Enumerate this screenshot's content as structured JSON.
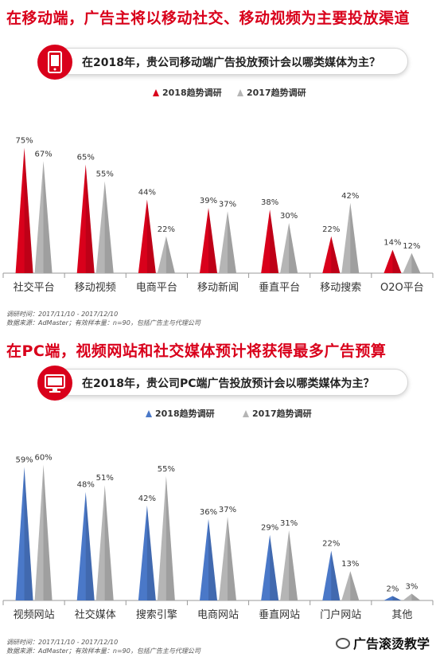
{
  "section1": {
    "headline": "在移动端，广告主将以移动社交、移动视频为主要投放渠道",
    "question": "在2018年，贵公司移动端广告投放预计会以哪类媒体为主？",
    "source_line1": "调研时间：2017/11/10 - 2017/12/10",
    "source_line2": "数据来源：AdMaster；有效样本量：n=90，包括广告主与代理公司"
  },
  "section2": {
    "headline": "在PC端，视频网站和社交媒体预计将获得最多广告预算",
    "question": "在2018年，贵公司PC端广告投放预计会以哪类媒体为主？",
    "source_line1": "调研时间：2017/11/10 - 2017/12/10",
    "source_line2": "数据来源：AdMaster；有效样本量：n=90，包括广告主与代理公司"
  },
  "watermark": {
    "icon": "wechat-icon",
    "text": "广告滚烫教学"
  },
  "chart_data": [
    {
      "type": "bar",
      "categories": [
        "社交平台",
        "移动视频",
        "电商平台",
        "移动新闻",
        "垂直平台",
        "移动搜索",
        "O2O平台"
      ],
      "series": [
        {
          "name": "2018趋势调研",
          "values": [
            75,
            65,
            44,
            39,
            38,
            22,
            14
          ],
          "color": "#d9001b"
        },
        {
          "name": "2017趋势调研",
          "values": [
            67,
            55,
            22,
            37,
            30,
            42,
            12
          ],
          "color": "#b5b5b5"
        }
      ],
      "value_suffix": "%",
      "ylim": [
        0,
        80
      ],
      "legend": "top-center",
      "grid": false
    },
    {
      "type": "bar",
      "categories": [
        "视频网站",
        "社交媒体",
        "搜索引擎",
        "电商网站",
        "垂直网站",
        "门户网站",
        "其他"
      ],
      "series": [
        {
          "name": "2018趋势调研",
          "values": [
            59,
            48,
            42,
            36,
            29,
            22,
            2
          ],
          "color": "#4a78c8"
        },
        {
          "name": "2017趋势调研",
          "values": [
            60,
            51,
            55,
            37,
            31,
            13,
            3
          ],
          "color": "#b5b5b5"
        }
      ],
      "value_suffix": "%",
      "ylim": [
        0,
        62
      ],
      "legend": "top-center",
      "grid": false
    }
  ]
}
